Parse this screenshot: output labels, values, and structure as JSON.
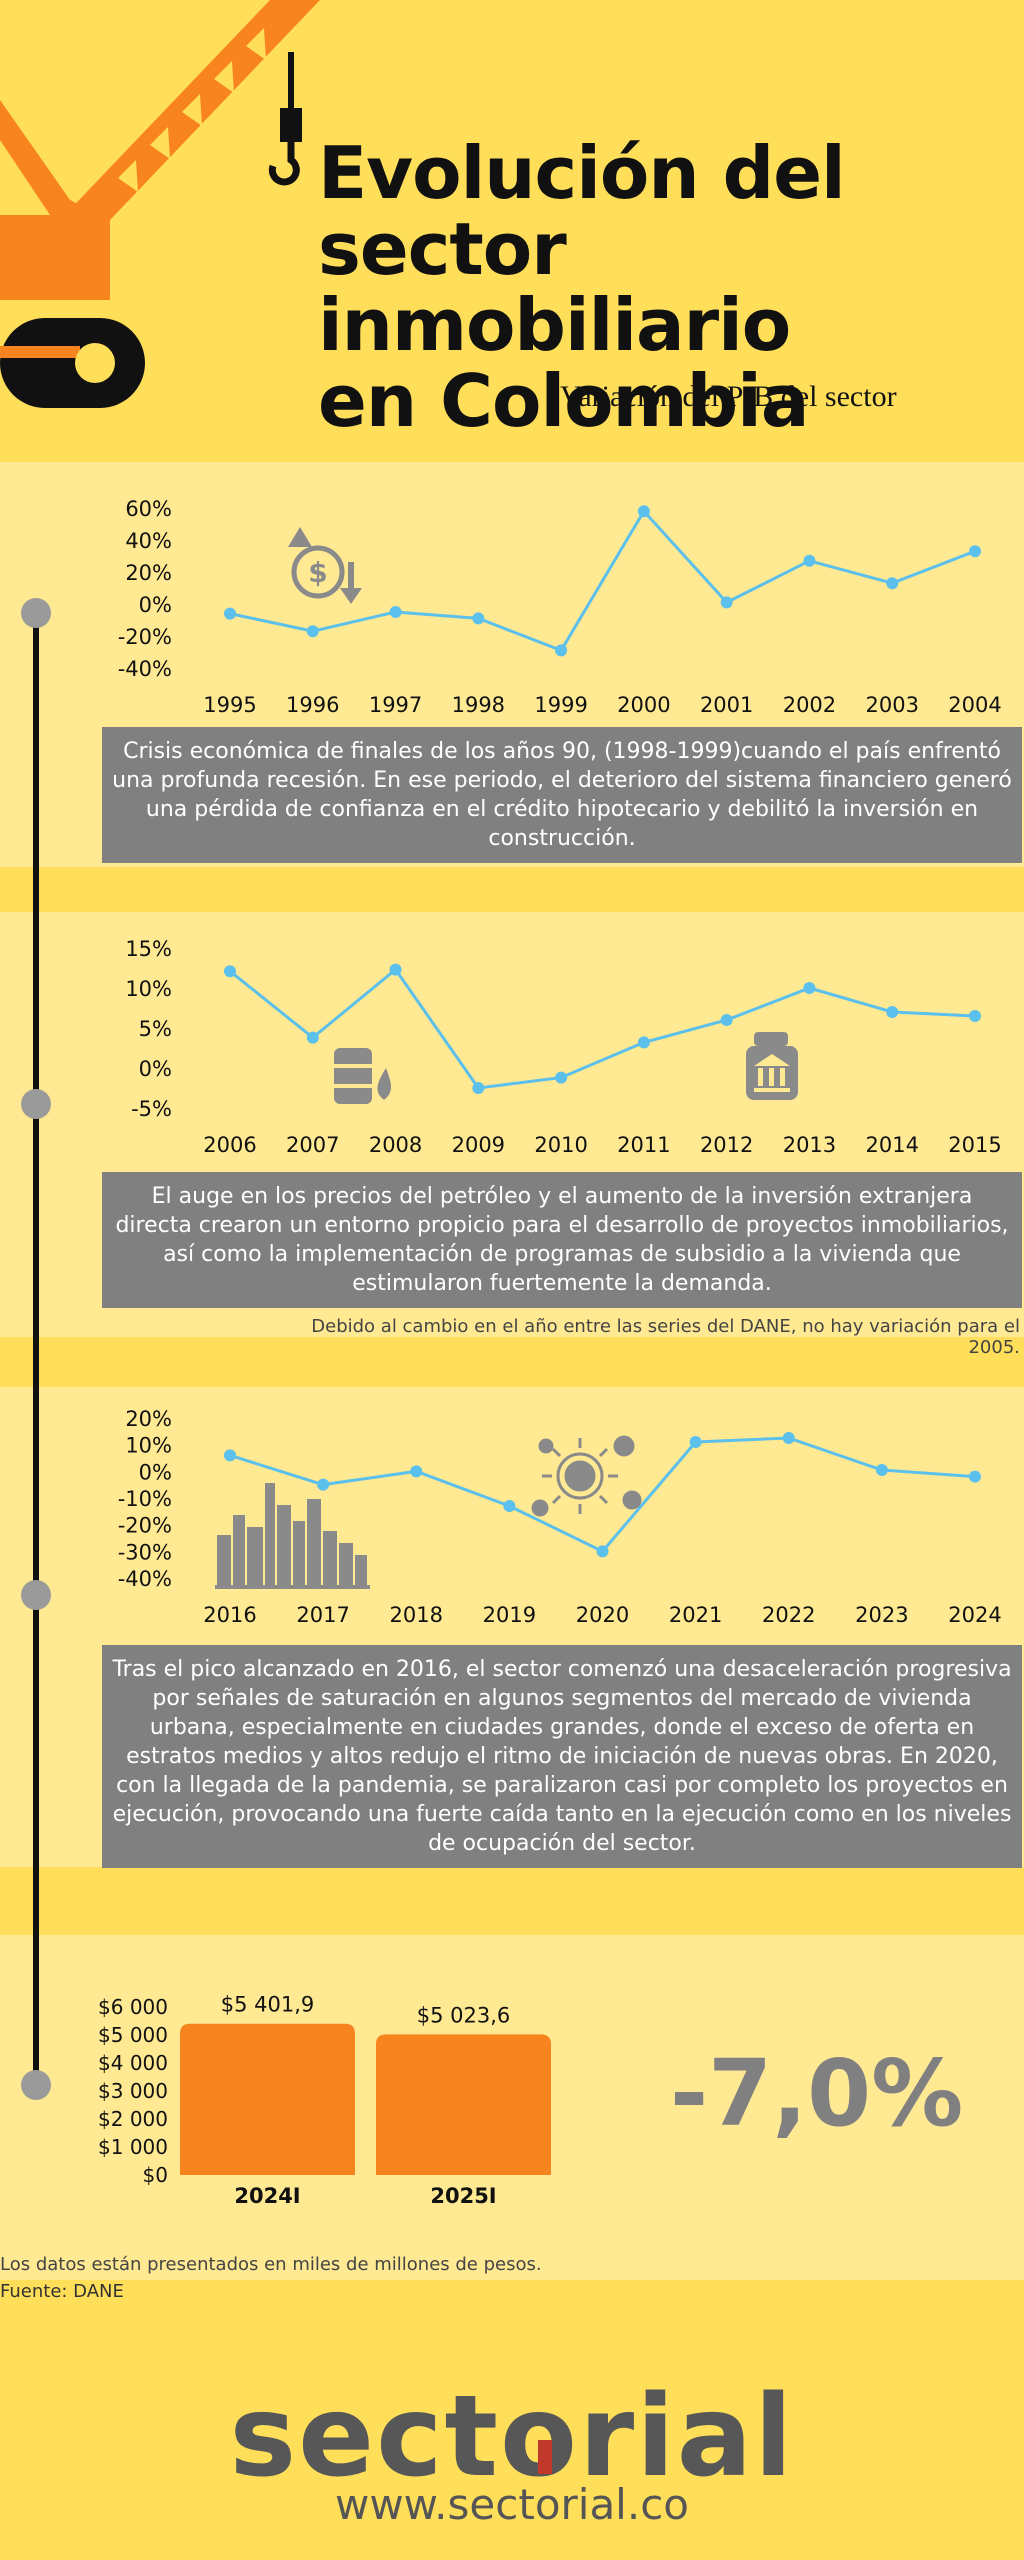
{
  "header": {
    "title_line1": "Evolución del",
    "title_line2": "sector inmobiliario",
    "title_line3": "en Colombia",
    "subtitle": "Variación del PIB  del sector"
  },
  "colors": {
    "background": "#FFDE59",
    "band": "#FFE993",
    "line": "#5BC0EB",
    "crane": "#F7841E",
    "bar": "#F7841E",
    "description_bg": "#808080"
  },
  "icons": [
    "crane-icon",
    "money-decrease-icon",
    "oil-barrel-icon",
    "bank-money-icon",
    "virus-icon",
    "city-skyline-icon"
  ],
  "sections": [
    {
      "description": "Crisis económica de finales de los años 90, (1998-1999)cuando el país enfrentó una profunda recesión. En ese periodo, el deterioro del sistema financiero generó una pérdida de confianza en el crédito hipotecario y debilitó la inversión en construcción."
    },
    {
      "description": "El auge en los precios del petróleo y el aumento de la inversión extranjera directa crearon un entorno propicio para el desarrollo de proyectos inmobiliarios, así como la implementación de programas de subsidio a la vivienda que estimularon fuertemente la demanda.",
      "note": "Debido al cambio en el año entre las series del DANE, no hay variación para el 2005."
    },
    {
      "description": "Tras el pico alcanzado en 2016, el sector comenzó una desaceleración progresiva por señales de saturación en algunos segmentos del mercado de vivienda urbana, especialmente en ciudades grandes, donde el exceso de oferta en estratos medios y altos redujo el ritmo de iniciación de nuevas obras. En 2020, con la llegada de la pandemia, se paralizaron casi por completo los proyectos en ejecución, provocando una fuerte caída tanto en la ejecución como en los niveles de ocupación del sector."
    }
  ],
  "chart_data": [
    {
      "type": "line",
      "x": [
        "1995",
        "1996",
        "1997",
        "1998",
        "1999",
        "2000",
        "2001",
        "2002",
        "2003",
        "2004"
      ],
      "values": [
        -6,
        -17,
        -5,
        -9,
        -29,
        58,
        1,
        27,
        13,
        33
      ],
      "ylim": [
        -40,
        60
      ],
      "yticks": [
        "60%",
        "40%",
        "20%",
        "0%",
        "-20%",
        "-40%"
      ],
      "grid": false
    },
    {
      "type": "line",
      "x": [
        "2006",
        "2007",
        "2008",
        "2009",
        "2010",
        "2011",
        "2012",
        "2013",
        "2014",
        "2015"
      ],
      "values": [
        12.1,
        3.8,
        12.3,
        -2.5,
        -1.2,
        3.2,
        6.0,
        10.0,
        7.0,
        6.5
      ],
      "ylim": [
        -5,
        15
      ],
      "yticks": [
        "15%",
        "10%",
        "5%",
        "0%",
        "-5%"
      ],
      "grid": false
    },
    {
      "type": "line",
      "x": [
        "2016",
        "2017",
        "2018",
        "2019",
        "2020",
        "2021",
        "2022",
        "2023",
        "2024"
      ],
      "values": [
        6,
        -5,
        0,
        -13,
        -30,
        11,
        12.5,
        0.5,
        -2
      ],
      "ylim": [
        -40,
        20
      ],
      "yticks": [
        "20%",
        "10%",
        "0%",
        "-10%",
        "-20%",
        "-30%",
        "-40%"
      ],
      "grid": false
    },
    {
      "type": "bar",
      "categories": [
        "2024I",
        "2025I"
      ],
      "values": [
        5401.9,
        5023.6
      ],
      "labels": [
        "$5 401,9",
        "$5 023,6"
      ],
      "ylim": [
        0,
        6000
      ],
      "yticks": [
        "$6 000",
        "$5 000",
        "$4 000",
        "$3 000",
        "$2 000",
        "$1 000",
        "$0"
      ],
      "change": "-7,0%"
    }
  ],
  "footer": {
    "units_note": "Los datos están presentados en miles de millones de pesos.",
    "source": "Fuente: DANE",
    "brand": "sectorial",
    "url": "www.sectorial.co"
  }
}
